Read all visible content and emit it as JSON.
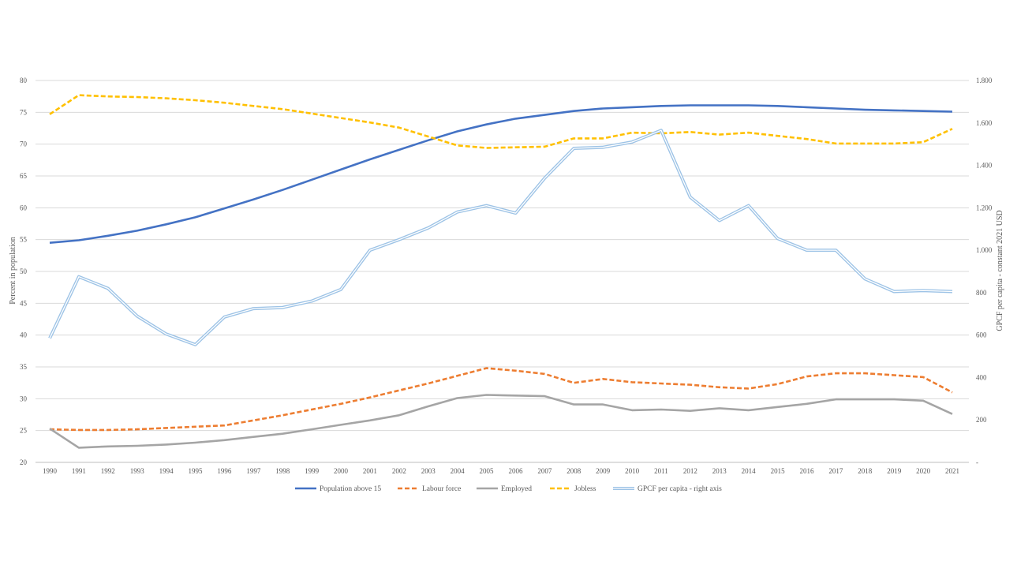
{
  "chart_data": {
    "type": "line",
    "title": "",
    "xlabel": "",
    "ylabel": "Percent in population",
    "y2label": "GPCF per capita - constant 2021 USD",
    "ylim": [
      20,
      80
    ],
    "y_ticks": [
      "20",
      "25",
      "30",
      "35",
      "40",
      "45",
      "50",
      "55",
      "60",
      "65",
      "70",
      "75",
      "80"
    ],
    "y2lim": [
      0,
      1800
    ],
    "y2_ticks": [
      "-",
      "200",
      "400",
      "600",
      "800",
      "1.000",
      "1.200",
      "1.400",
      "1.600",
      "1.800"
    ],
    "grid": "horizontal",
    "legend_position": "bottom",
    "categories": [
      "1990",
      "1991",
      "1992",
      "1993",
      "1994",
      "1995",
      "1996",
      "1997",
      "1998",
      "1999",
      "2000",
      "2001",
      "2002",
      "2003",
      "2004",
      "2005",
      "2006",
      "2007",
      "2008",
      "2009",
      "2010",
      "2011",
      "2012",
      "2013",
      "2014",
      "2015",
      "2016",
      "2017",
      "2018",
      "2019",
      "2020",
      "2021"
    ],
    "series": [
      {
        "name": "Population above 15",
        "axis": "left",
        "color": "#4472C4",
        "style": "solid",
        "values": [
          54.5,
          54.9,
          55.6,
          56.4,
          57.4,
          58.5,
          59.9,
          61.3,
          62.8,
          64.4,
          66.0,
          67.6,
          69.1,
          70.6,
          72.0,
          73.1,
          74.0,
          74.6,
          75.2,
          75.6,
          75.8,
          76.0,
          76.1,
          76.1,
          76.1,
          76.0,
          75.8,
          75.6,
          75.4,
          75.3,
          75.2,
          75.1
        ]
      },
      {
        "name": "Labour force",
        "axis": "left",
        "color": "#ED7D31",
        "style": "dashed",
        "values": [
          25.2,
          25.1,
          25.1,
          25.2,
          25.4,
          25.6,
          25.8,
          26.6,
          27.4,
          28.3,
          29.2,
          30.2,
          31.3,
          32.4,
          33.6,
          34.8,
          34.4,
          33.9,
          32.5,
          33.1,
          32.6,
          32.4,
          32.2,
          31.8,
          31.6,
          32.3,
          33.5,
          34.0,
          34.0,
          33.7,
          33.4,
          31.0
        ]
      },
      {
        "name": "Employed",
        "axis": "left",
        "color": "#A5A5A5",
        "style": "solid",
        "values": [
          25.3,
          22.3,
          22.5,
          22.6,
          22.8,
          23.1,
          23.5,
          24.0,
          24.5,
          25.2,
          25.9,
          26.6,
          27.4,
          28.8,
          30.1,
          30.6,
          30.5,
          30.4,
          29.1,
          29.1,
          28.2,
          28.3,
          28.1,
          28.5,
          28.2,
          28.7,
          29.2,
          29.9,
          29.9,
          29.9,
          29.7,
          27.6
        ]
      },
      {
        "name": "Jobless",
        "axis": "left",
        "color": "#FFC000",
        "style": "dashed",
        "values": [
          74.7,
          77.7,
          77.5,
          77.4,
          77.2,
          76.9,
          76.5,
          76.0,
          75.5,
          74.8,
          74.1,
          73.4,
          72.6,
          71.2,
          69.8,
          69.4,
          69.5,
          69.6,
          70.9,
          70.9,
          71.8,
          71.7,
          71.9,
          71.5,
          71.8,
          71.3,
          70.8,
          70.1,
          70.1,
          70.1,
          70.3,
          72.4
        ]
      },
      {
        "name": "GPCF per capita - right axis",
        "axis": "right",
        "color": "#9DC3E6",
        "style": "double",
        "values": [
          585,
          875,
          820,
          690,
          605,
          555,
          685,
          725,
          730,
          760,
          815,
          1000,
          1050,
          1105,
          1180,
          1210,
          1175,
          1340,
          1480,
          1485,
          1510,
          1565,
          1250,
          1140,
          1210,
          1055,
          1000,
          1000,
          865,
          805,
          810,
          805
        ]
      }
    ]
  }
}
